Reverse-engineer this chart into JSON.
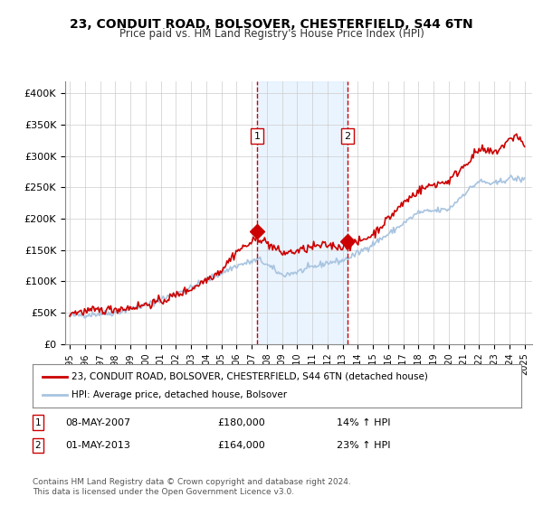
{
  "title": "23, CONDUIT ROAD, BOLSOVER, CHESTERFIELD, S44 6TN",
  "subtitle": "Price paid vs. HM Land Registry's House Price Index (HPI)",
  "ylabel_ticks": [
    "£0",
    "£50K",
    "£100K",
    "£150K",
    "£200K",
    "£250K",
    "£300K",
    "£350K",
    "£400K"
  ],
  "ytick_values": [
    0,
    50000,
    100000,
    150000,
    200000,
    250000,
    300000,
    350000,
    400000
  ],
  "ylim": [
    0,
    420000
  ],
  "xlim_start": 1995.0,
  "xlim_end": 2025.5,
  "sale1_date": 2007.36,
  "sale1_price": 180000,
  "sale1_label": "1",
  "sale1_annotation": "08-MAY-2007    £180,000    14% ↑ HPI",
  "sale2_date": 2013.33,
  "sale2_price": 164000,
  "sale2_label": "2",
  "sale2_annotation": "01-MAY-2013    £164,000    23% ↑ HPI",
  "hpi_color": "#a8c4e0",
  "price_color": "#cc0000",
  "marker_color": "#cc0000",
  "vline_color": "#cc0000",
  "shading_color": "#ddeeff",
  "legend_label_price": "23, CONDUIT ROAD, BOLSOVER, CHESTERFIELD, S44 6TN (detached house)",
  "legend_label_hpi": "HPI: Average price, detached house, Bolsover",
  "footer": "Contains HM Land Registry data © Crown copyright and database right 2024.\nThis data is licensed under the Open Government Licence v3.0.",
  "xtick_years": [
    1995,
    1996,
    1997,
    1998,
    1999,
    2000,
    2001,
    2002,
    2003,
    2004,
    2005,
    2006,
    2007,
    2008,
    2009,
    2010,
    2011,
    2012,
    2013,
    2014,
    2015,
    2016,
    2017,
    2018,
    2019,
    2020,
    2021,
    2022,
    2023,
    2024,
    2025
  ],
  "background_color": "#ffffff",
  "grid_color": "#cccccc"
}
